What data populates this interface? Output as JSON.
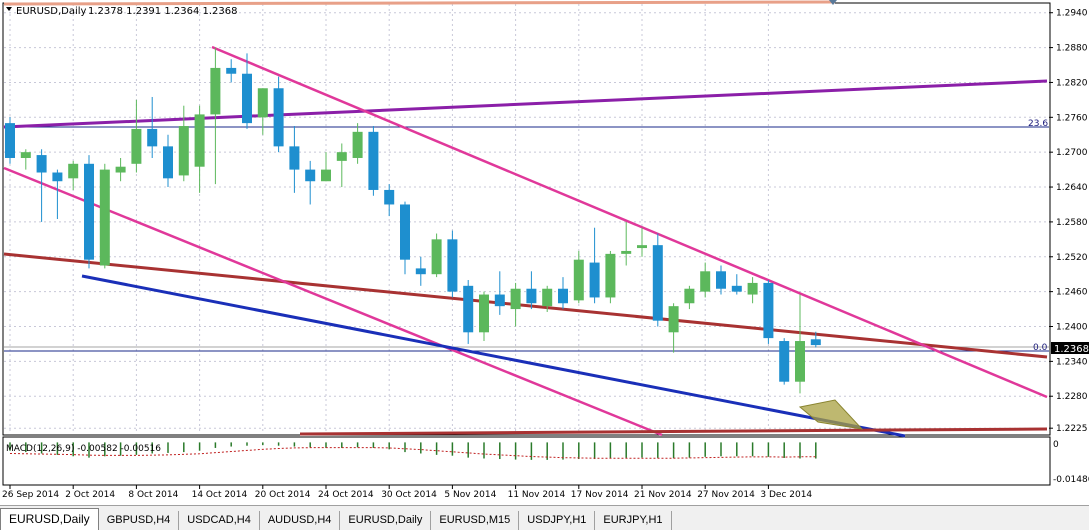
{
  "header": {
    "title": "EURUSD,Daily",
    "ohlc": "1.2378 1.2391 1.2364 1.2368"
  },
  "price_axis": {
    "labels": [
      "1.2940",
      "1.2880",
      "1.2820",
      "1.2760",
      "1.2700",
      "1.2640",
      "1.2580",
      "1.2520",
      "1.2460",
      "1.2400",
      "1.2340",
      "1.2280",
      "1.2225"
    ],
    "current_price": "1.2368",
    "fib_236": "23.6",
    "fib_0": "0.0"
  },
  "macd": {
    "label": "MACD(12,26,9) -0.00582 -0.00516",
    "axis_labels": [
      "0",
      "-0.01486"
    ]
  },
  "time_axis": {
    "labels": [
      "26 Sep 2014",
      "2 Oct 2014",
      "8 Oct 2014",
      "14 Oct 2014",
      "20 Oct 2014",
      "24 Oct 2014",
      "30 Oct 2014",
      "5 Nov 2014",
      "11 Nov 2014",
      "17 Nov 2014",
      "21 Nov 2014",
      "27 Nov 2014",
      "3 Dec 2014"
    ]
  },
  "tabs": [
    {
      "label": "EURUSD,Daily",
      "active": true
    },
    {
      "label": "GBPUSD,H4",
      "active": false
    },
    {
      "label": "USDCAD,H4",
      "active": false
    },
    {
      "label": "AUDUSD,H4",
      "active": false
    },
    {
      "label": "EURUSD,Daily",
      "active": false
    },
    {
      "label": "EURUSD,M15",
      "active": false
    },
    {
      "label": "USDJPY,H1",
      "active": false
    },
    {
      "label": "EURJPY,H1",
      "active": false
    }
  ],
  "colors": {
    "bull": "#5cb85c",
    "bear": "#1e8fcf",
    "purple": "#8b1fa8",
    "magenta": "#e0389a",
    "brown": "#a83232",
    "blue": "#1a2fb8",
    "salmon": "#e8a088"
  },
  "chart_data": {
    "type": "candlestick",
    "symbol": "EURUSD",
    "timeframe": "Daily",
    "ylim": [
      1.2215,
      1.2955
    ],
    "candles": [
      {
        "o": 1.275,
        "h": 1.276,
        "l": 1.268,
        "c": 1.269
      },
      {
        "o": 1.269,
        "h": 1.2705,
        "l": 1.267,
        "c": 1.27
      },
      {
        "o": 1.2695,
        "h": 1.2705,
        "l": 1.258,
        "c": 1.2665
      },
      {
        "o": 1.2665,
        "h": 1.267,
        "l": 1.2585,
        "c": 1.265
      },
      {
        "o": 1.2655,
        "h": 1.2685,
        "l": 1.2635,
        "c": 1.268
      },
      {
        "o": 1.268,
        "h": 1.2695,
        "l": 1.25,
        "c": 1.2515
      },
      {
        "o": 1.2505,
        "h": 1.268,
        "l": 1.25,
        "c": 1.267
      },
      {
        "o": 1.2665,
        "h": 1.269,
        "l": 1.265,
        "c": 1.2675
      },
      {
        "o": 1.268,
        "h": 1.279,
        "l": 1.2665,
        "c": 1.274
      },
      {
        "o": 1.274,
        "h": 1.2795,
        "l": 1.269,
        "c": 1.271
      },
      {
        "o": 1.271,
        "h": 1.273,
        "l": 1.264,
        "c": 1.2655
      },
      {
        "o": 1.266,
        "h": 1.278,
        "l": 1.265,
        "c": 1.2745
      },
      {
        "o": 1.2675,
        "h": 1.278,
        "l": 1.263,
        "c": 1.2765
      },
      {
        "o": 1.2765,
        "h": 1.288,
        "l": 1.2645,
        "c": 1.2845
      },
      {
        "o": 1.2845,
        "h": 1.286,
        "l": 1.282,
        "c": 1.2835
      },
      {
        "o": 1.2835,
        "h": 1.287,
        "l": 1.274,
        "c": 1.275
      },
      {
        "o": 1.276,
        "h": 1.281,
        "l": 1.273,
        "c": 1.281
      },
      {
        "o": 1.281,
        "h": 1.283,
        "l": 1.27,
        "c": 1.271
      },
      {
        "o": 1.271,
        "h": 1.2745,
        "l": 1.263,
        "c": 1.267
      },
      {
        "o": 1.267,
        "h": 1.2685,
        "l": 1.261,
        "c": 1.265
      },
      {
        "o": 1.265,
        "h": 1.27,
        "l": 1.265,
        "c": 1.267
      },
      {
        "o": 1.2685,
        "h": 1.2715,
        "l": 1.264,
        "c": 1.27
      },
      {
        "o": 1.269,
        "h": 1.275,
        "l": 1.268,
        "c": 1.2735
      },
      {
        "o": 1.2735,
        "h": 1.2745,
        "l": 1.2625,
        "c": 1.2635
      },
      {
        "o": 1.2635,
        "h": 1.2645,
        "l": 1.259,
        "c": 1.261
      },
      {
        "o": 1.261,
        "h": 1.2615,
        "l": 1.249,
        "c": 1.2515
      },
      {
        "o": 1.25,
        "h": 1.252,
        "l": 1.247,
        "c": 1.249
      },
      {
        "o": 1.249,
        "h": 1.256,
        "l": 1.2485,
        "c": 1.255
      },
      {
        "o": 1.255,
        "h": 1.2565,
        "l": 1.245,
        "c": 1.246
      },
      {
        "o": 1.247,
        "h": 1.248,
        "l": 1.237,
        "c": 1.239
      },
      {
        "o": 1.239,
        "h": 1.246,
        "l": 1.2375,
        "c": 1.2455
      },
      {
        "o": 1.2455,
        "h": 1.2495,
        "l": 1.242,
        "c": 1.2435
      },
      {
        "o": 1.243,
        "h": 1.2475,
        "l": 1.24,
        "c": 1.2465
      },
      {
        "o": 1.2465,
        "h": 1.2495,
        "l": 1.243,
        "c": 1.244
      },
      {
        "o": 1.2435,
        "h": 1.247,
        "l": 1.2425,
        "c": 1.2465
      },
      {
        "o": 1.2465,
        "h": 1.2485,
        "l": 1.243,
        "c": 1.244
      },
      {
        "o": 1.2445,
        "h": 1.253,
        "l": 1.244,
        "c": 1.2515
      },
      {
        "o": 1.251,
        "h": 1.257,
        "l": 1.244,
        "c": 1.245
      },
      {
        "o": 1.245,
        "h": 1.253,
        "l": 1.244,
        "c": 1.2525
      },
      {
        "o": 1.2525,
        "h": 1.258,
        "l": 1.2505,
        "c": 1.253
      },
      {
        "o": 1.2535,
        "h": 1.257,
        "l": 1.252,
        "c": 1.254
      },
      {
        "o": 1.254,
        "h": 1.256,
        "l": 1.24,
        "c": 1.241
      },
      {
        "o": 1.239,
        "h": 1.244,
        "l": 1.2355,
        "c": 1.2435
      },
      {
        "o": 1.244,
        "h": 1.247,
        "l": 1.243,
        "c": 1.2465
      },
      {
        "o": 1.246,
        "h": 1.251,
        "l": 1.245,
        "c": 1.2495
      },
      {
        "o": 1.2495,
        "h": 1.2505,
        "l": 1.2455,
        "c": 1.2465
      },
      {
        "o": 1.247,
        "h": 1.249,
        "l": 1.2455,
        "c": 1.246
      },
      {
        "o": 1.2455,
        "h": 1.2485,
        "l": 1.244,
        "c": 1.2475
      },
      {
        "o": 1.2475,
        "h": 1.248,
        "l": 1.237,
        "c": 1.238
      },
      {
        "o": 1.2375,
        "h": 1.238,
        "l": 1.23,
        "c": 1.2305
      },
      {
        "o": 1.2305,
        "h": 1.2455,
        "l": 1.2285,
        "c": 1.2375
      },
      {
        "o": 1.2378,
        "h": 1.2391,
        "l": 1.2364,
        "c": 1.2368
      }
    ],
    "macd_hist": [
      -0.003,
      -0.0035,
      -0.004,
      -0.0045,
      -0.005,
      -0.0055,
      -0.005,
      -0.0048,
      -0.0045,
      -0.004,
      -0.0038,
      -0.0035,
      -0.003,
      -0.002,
      -0.0015,
      -0.0012,
      -0.001,
      -0.0012,
      -0.0015,
      -0.0018,
      -0.002,
      -0.002,
      -0.0018,
      -0.002,
      -0.0025,
      -0.0035,
      -0.004,
      -0.0045,
      -0.0048,
      -0.0055,
      -0.0058,
      -0.006,
      -0.0062,
      -0.0063,
      -0.0063,
      -0.0062,
      -0.006,
      -0.006,
      -0.0058,
      -0.0056,
      -0.0055,
      -0.0056,
      -0.0057,
      -0.0055,
      -0.0052,
      -0.005,
      -0.005,
      -0.005,
      -0.0052,
      -0.0056,
      -0.0058,
      -0.00582
    ],
    "macd_signal": [
      -0.004,
      -0.0041,
      -0.0042,
      -0.0043,
      -0.0044,
      -0.0046,
      -0.0047,
      -0.0047,
      -0.0047,
      -0.0046,
      -0.0045,
      -0.0043,
      -0.0041,
      -0.0037,
      -0.0033,
      -0.0029,
      -0.0025,
      -0.0022,
      -0.002,
      -0.0019,
      -0.0019,
      -0.0019,
      -0.0019,
      -0.0019,
      -0.002,
      -0.0023,
      -0.0026,
      -0.003,
      -0.0034,
      -0.0038,
      -0.0042,
      -0.0045,
      -0.0048,
      -0.0051,
      -0.0053,
      -0.0055,
      -0.0056,
      -0.0057,
      -0.0057,
      -0.0057,
      -0.0057,
      -0.0057,
      -0.0057,
      -0.0056,
      -0.0055,
      -0.0054,
      -0.0053,
      -0.0052,
      -0.0052,
      -0.0053,
      -0.0052,
      -0.00516
    ]
  }
}
